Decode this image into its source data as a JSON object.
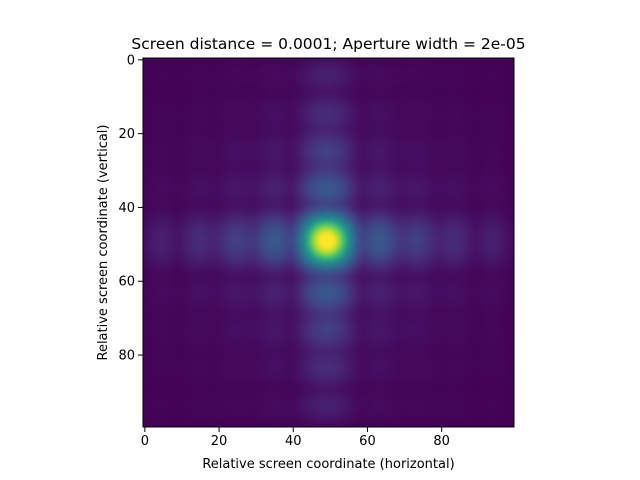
{
  "chart_data": {
    "type": "heatmap",
    "title": "Screen distance = 0.0001; Aperture width = 2e-05",
    "xlabel": "Relative screen coordinate (horizontal)",
    "ylabel": "Relative screen coordinate (vertical)",
    "grid_size": [
      100,
      100
    ],
    "xlim": [
      -0.5,
      99.5
    ],
    "ylim": [
      99.5,
      -0.5
    ],
    "y_axis_inverted": true,
    "xticks": [
      0,
      20,
      40,
      60,
      80
    ],
    "yticks": [
      0,
      20,
      40,
      60,
      80
    ],
    "colormap": "viridis",
    "colorbar": false,
    "grid": false,
    "peak_center": [
      49,
      49
    ],
    "pattern": "square-aperture diffraction (sinc^2 x sinc^2), fringe spacing ~10 px",
    "value_range": [
      0,
      1
    ]
  },
  "colors": {
    "viridis_low": "#440154",
    "viridis_mid": "#21918c",
    "viridis_high": "#fde725"
  }
}
